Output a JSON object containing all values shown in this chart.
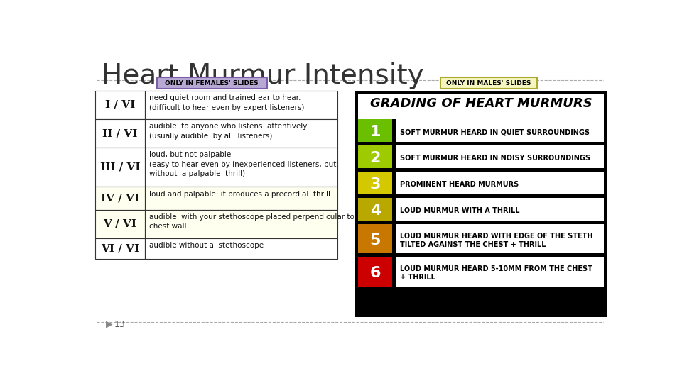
{
  "title": "Heart Murmur Intensity",
  "title_fontsize": 28,
  "bg_color": "#ffffff",
  "female_label": "ONLY IN FEMALES' SLIDES",
  "female_label_bg": "#b8a9d4",
  "female_label_border": "#7b5ea7",
  "male_label": "ONLY IN MALES' SLIDES",
  "male_label_bg": "#f5f5c0",
  "male_label_border": "#aaa830",
  "slide_number": "13",
  "dashed_line_color": "#aaaaaa",
  "left_table": {
    "grades": [
      "I / VI",
      "II / VI",
      "III / VI",
      "IV / VI",
      "V / VI",
      "VI / VI"
    ],
    "descriptions": [
      "need quiet room and trained ear to hear.\n(difficult to hear even by expert listeners)",
      "audible  to anyone who listens  attentively\n(usually audible  by all  listeners)",
      "loud, but not palpable\n(easy to hear even by inexperienced listeners, but\nwithout  a palpable  thrill)",
      "loud and palpable: it produces a precordial  thrill",
      "audible  with your stethoscope placed perpendicular to\nchest wall",
      "audible without a  stethoscope"
    ],
    "row_colors": [
      "#ffffff",
      "#ffffff",
      "#ffffff",
      "#fffff0",
      "#fffff0",
      "#ffffff"
    ],
    "border_color": "#333333"
  },
  "right_table": {
    "header": "GRADING OF HEART MURMURS",
    "grades": [
      "1",
      "2",
      "3",
      "4",
      "5",
      "6"
    ],
    "descriptions": [
      "SOFT MURMUR HEARD IN QUIET SURROUNDINGS",
      "SOFT MURMUR HEARD IN NOISY SURROUNDINGS",
      "PROMINENT HEARD MURMURS",
      "LOUD MURMUR WITH A THRILL",
      "LOUD MURMUR HEARD WITH EDGE OF THE STETH\nTILTED AGAINST THE CHEST + THRILL",
      "LOUD MURMUR HEARD 5-10MM FROM THE CHEST\n+ THRILL"
    ],
    "grade_colors": [
      "#6abf00",
      "#9ecb00",
      "#d4c800",
      "#b8a800",
      "#c87800",
      "#cc0000"
    ],
    "bg_color": "#000000",
    "text_color": "#ffffff",
    "desc_bg": "#ffffff",
    "desc_text": "#000000"
  }
}
